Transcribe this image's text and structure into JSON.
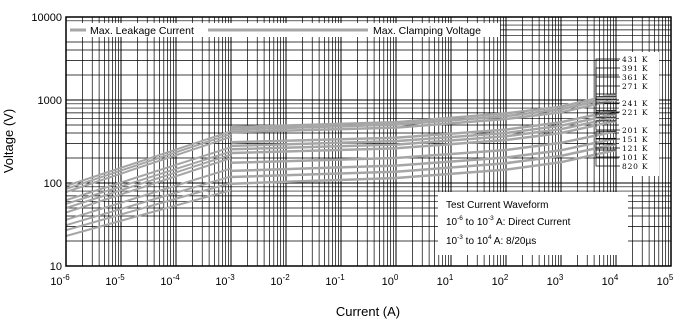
{
  "chart_data": {
    "type": "line",
    "xlabel": "Current (A)",
    "ylabel": "Voltage (V)",
    "xscale": "log",
    "yscale": "log",
    "xlim": [
      1e-06,
      100000.0
    ],
    "ylim": [
      10,
      10000
    ],
    "grid": true,
    "y_ticks": [
      "10",
      "100",
      "1000",
      "10000"
    ],
    "x_ticks": [
      {
        "base": "10",
        "exp": "-6"
      },
      {
        "base": "10",
        "exp": "-5"
      },
      {
        "base": "10",
        "exp": "-4"
      },
      {
        "base": "10",
        "exp": "-3"
      },
      {
        "base": "10",
        "exp": "-2"
      },
      {
        "base": "10",
        "exp": "-1"
      },
      {
        "base": "10",
        "exp": "0"
      },
      {
        "base": "10",
        "exp": "1"
      },
      {
        "base": "10",
        "exp": "2"
      },
      {
        "base": "10",
        "exp": "3"
      },
      {
        "base": "10",
        "exp": "4"
      },
      {
        "base": "10",
        "exp": "5"
      }
    ],
    "legend": {
      "placement": "top",
      "left_label": "Max. Leakage Current",
      "right_label": "Max. Clamping Voltage"
    },
    "annotation": {
      "title": "Test Current Waveform",
      "line1": {
        "a_base": "10",
        "a_exp": "-6",
        "mid": " to ",
        "b_base": "10",
        "b_exp": "-3",
        "tail": " A: Direct Current"
      },
      "line2": {
        "a_base": "10",
        "a_exp": "-3",
        "mid": " to ",
        "b_base": "10",
        "b_exp": "4",
        "tail": " A: 8/20µs"
      }
    },
    "series": [
      {
        "name": "431 K",
        "leakage": [
          [
            1e-06,
            92
          ],
          [
            0.001,
            420
          ]
        ],
        "clamping": [
          [
            0.001,
            470
          ],
          [
            1,
            540
          ],
          [
            100,
            690
          ],
          [
            1000,
            830
          ],
          [
            10000,
            1180
          ]
        ]
      },
      {
        "name": "391 K",
        "leakage": [
          [
            1e-06,
            85
          ],
          [
            0.001,
            390
          ]
        ],
        "clamping": [
          [
            0.001,
            440
          ],
          [
            1,
            505
          ],
          [
            100,
            640
          ],
          [
            1000,
            770
          ],
          [
            10000,
            1100
          ]
        ]
      },
      {
        "name": "361 K",
        "leakage": [
          [
            1e-06,
            78
          ],
          [
            0.001,
            360
          ]
        ],
        "clamping": [
          [
            0.001,
            410
          ],
          [
            1,
            465
          ],
          [
            100,
            590
          ],
          [
            1000,
            710
          ],
          [
            10000,
            1010
          ]
        ]
      },
      {
        "name": "271 K",
        "leakage": [
          [
            1e-06,
            62
          ],
          [
            0.001,
            270
          ]
        ],
        "clamping": [
          [
            0.001,
            310
          ],
          [
            1,
            350
          ],
          [
            100,
            440
          ],
          [
            1000,
            540
          ],
          [
            10000,
            750
          ]
        ]
      },
      {
        "name": "241 K",
        "leakage": [
          [
            1e-06,
            56
          ],
          [
            0.001,
            240
          ]
        ],
        "clamping": [
          [
            0.001,
            280
          ],
          [
            1,
            320
          ],
          [
            100,
            400
          ],
          [
            1000,
            490
          ],
          [
            10000,
            680
          ]
        ]
      },
      {
        "name": "221 K",
        "leakage": [
          [
            1e-06,
            50
          ],
          [
            0.001,
            220
          ]
        ],
        "clamping": [
          [
            0.001,
            255
          ],
          [
            1,
            290
          ],
          [
            100,
            365
          ],
          [
            1000,
            445
          ],
          [
            10000,
            620
          ]
        ]
      },
      {
        "name": "201 K",
        "leakage": [
          [
            1e-06,
            44
          ],
          [
            0.001,
            200
          ]
        ],
        "clamping": [
          [
            0.001,
            230
          ],
          [
            1,
            262
          ],
          [
            100,
            330
          ],
          [
            1000,
            400
          ],
          [
            10000,
            560
          ]
        ]
      },
      {
        "name": "151 K",
        "leakage": [
          [
            1e-06,
            36
          ],
          [
            0.001,
            150
          ]
        ],
        "clamping": [
          [
            0.001,
            175
          ],
          [
            1,
            200
          ],
          [
            100,
            250
          ],
          [
            1000,
            305
          ],
          [
            10000,
            420
          ]
        ]
      },
      {
        "name": "121 K",
        "leakage": [
          [
            1e-06,
            31
          ],
          [
            0.001,
            120
          ]
        ],
        "clamping": [
          [
            0.001,
            140
          ],
          [
            1,
            162
          ],
          [
            100,
            203
          ],
          [
            1000,
            248
          ],
          [
            10000,
            345
          ]
        ]
      },
      {
        "name": "101 K",
        "leakage": [
          [
            1e-06,
            27
          ],
          [
            0.001,
            100
          ]
        ],
        "clamping": [
          [
            0.001,
            118
          ],
          [
            1,
            137
          ],
          [
            100,
            173
          ],
          [
            1000,
            212
          ],
          [
            10000,
            295
          ]
        ]
      },
      {
        "name": "820 K",
        "leakage": [
          [
            1e-06,
            23
          ],
          [
            0.001,
            82
          ]
        ],
        "clamping": [
          [
            0.001,
            98
          ],
          [
            1,
            115
          ],
          [
            100,
            145
          ],
          [
            1000,
            178
          ],
          [
            10000,
            250
          ]
        ]
      }
    ]
  },
  "colors": {
    "curve": "#a6a6a6",
    "grid": "#000000",
    "background": "#ffffff",
    "text": "#000000"
  }
}
